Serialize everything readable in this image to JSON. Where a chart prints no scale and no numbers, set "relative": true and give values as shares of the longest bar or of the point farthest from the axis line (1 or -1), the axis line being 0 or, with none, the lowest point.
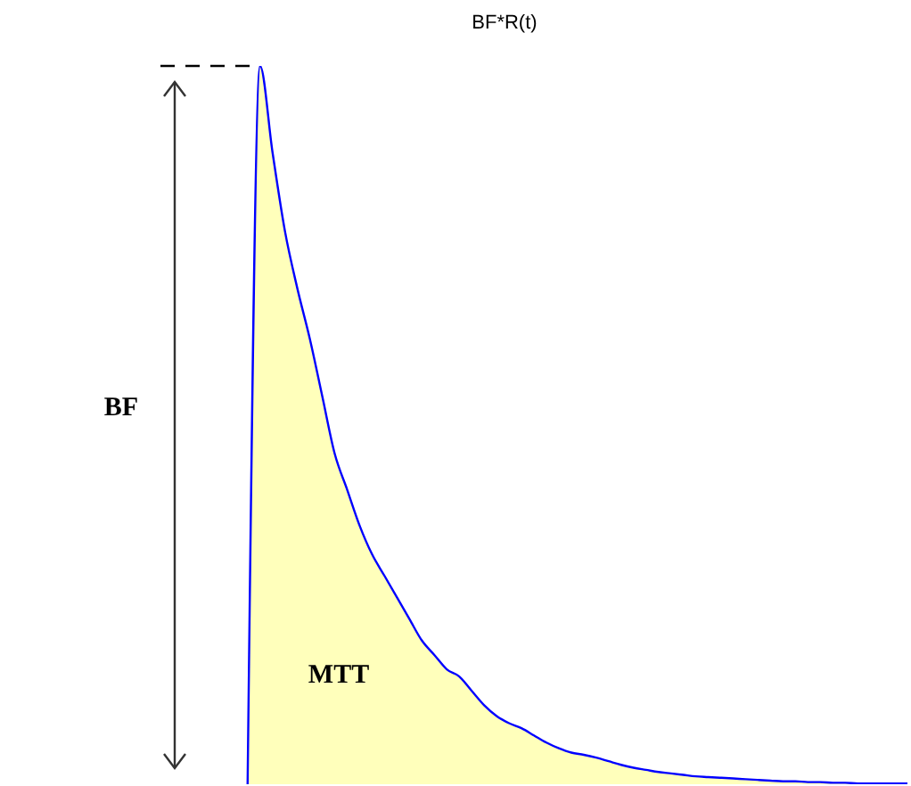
{
  "chart_data": {
    "type": "area",
    "title": "BF*R(t)",
    "relative": true,
    "categories": [
      null,
      null,
      null,
      null,
      null,
      null,
      null,
      null,
      null,
      null,
      null,
      null,
      null,
      null,
      null,
      null,
      null,
      null,
      null,
      null,
      null,
      null,
      null,
      null,
      null,
      null,
      null,
      null,
      null,
      null,
      null,
      null,
      null,
      null,
      null,
      null,
      null,
      null,
      null,
      null,
      null,
      null,
      null,
      null,
      null,
      null,
      null,
      null,
      null,
      null,
      null,
      null,
      null,
      null
    ],
    "series": [
      {
        "color": "#ffffbb",
        "values": [
          0,
          1,
          0.88,
          0.77,
          0.69,
          0.62,
          0.54,
          0.46,
          0.41,
          0.36,
          0.32,
          0.29,
          0.26,
          0.23,
          0.2,
          0.18,
          0.16,
          0.15,
          0.13,
          0.11,
          0.095,
          0.085,
          0.078,
          0.068,
          0.058,
          0.05,
          0.044,
          0.041,
          0.037,
          0.032,
          0.027,
          0.023,
          0.02,
          0.017,
          0.015,
          0.013,
          0.011,
          0.01,
          0.009,
          0.008,
          0.007,
          0.006,
          0.005,
          0.004,
          0.004,
          0.003,
          0.003,
          0.002,
          0.002,
          0.001,
          0.001,
          0.001,
          0.001,
          0.001
        ]
      }
    ],
    "annotations": [
      "BF",
      "MTT"
    ],
    "grid": false,
    "legend": false
  }
}
